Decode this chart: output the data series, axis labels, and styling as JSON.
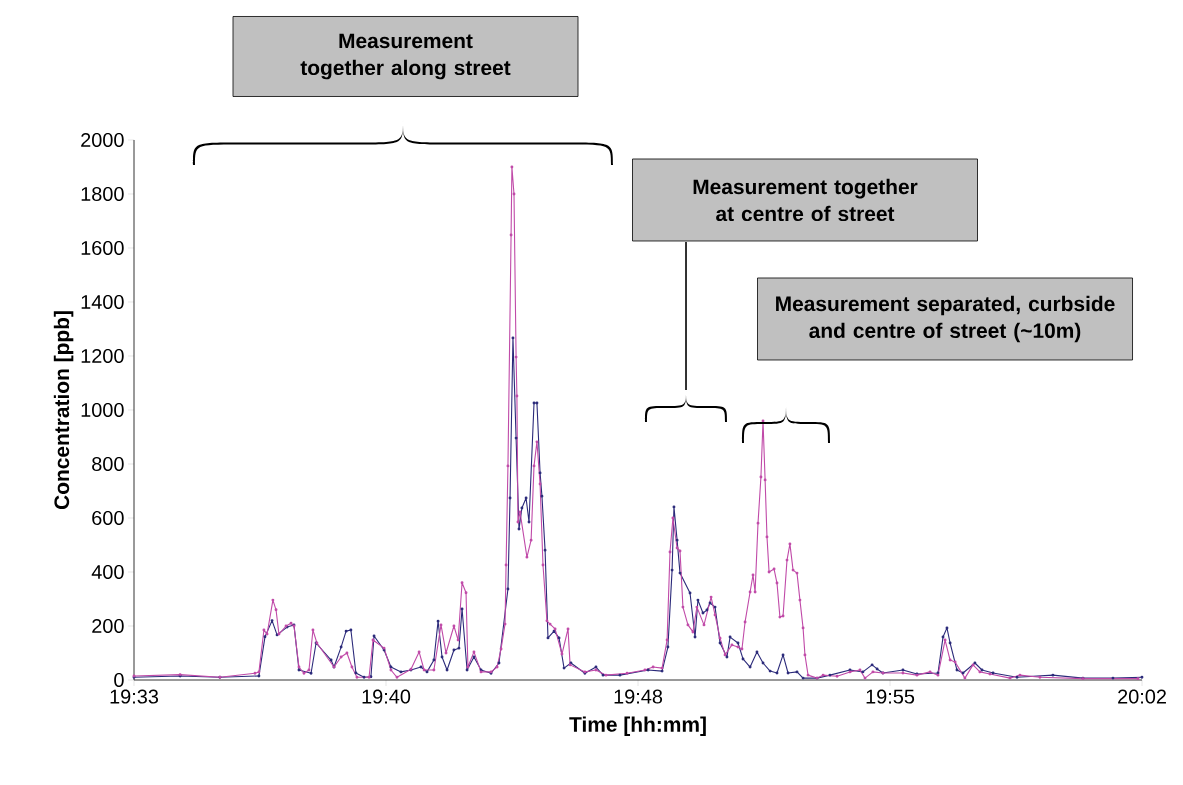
{
  "chart_data": {
    "type": "line",
    "xlabel": "Time [hh:mm]",
    "ylabel": "Concentration [ppb]",
    "xlim": [
      19.55,
      20.033333
    ],
    "ylim": [
      0,
      2000
    ],
    "xticks": [
      {
        "value": 19.55,
        "label": "19:33"
      },
      {
        "value": 19.670833,
        "label": "19:40"
      },
      {
        "value": 19.791667,
        "label": "19:48"
      },
      {
        "value": 19.9125,
        "label": "19:55"
      },
      {
        "value": 20.033333,
        "label": "20:02"
      }
    ],
    "yticks": [
      0,
      200,
      400,
      600,
      800,
      1000,
      1200,
      1400,
      1600,
      1800,
      2000
    ],
    "marker": "circle",
    "annotations": [
      "Measurement together along street",
      "Measurement together at centre of street",
      "Measurement separated, curbside and centre of street (~10m)"
    ],
    "series": [
      {
        "color": "#2b2a7a",
        "x": [
          19.55,
          19.5721,
          19.5912,
          19.6099,
          19.6128,
          19.6162,
          19.6186,
          19.6234,
          19.6267,
          19.6291,
          19.6349,
          19.6373,
          19.6445,
          19.6459,
          19.6493,
          19.6517,
          19.654,
          19.6564,
          19.6603,
          19.6636,
          19.6651,
          19.6699,
          19.6732,
          19.678,
          19.6828,
          19.6876,
          19.6905,
          19.6938,
          19.6958,
          19.6977,
          19.7001,
          19.7034,
          19.7058,
          19.7073,
          19.7097,
          19.713,
          19.7164,
          19.7212,
          19.725,
          19.7293,
          19.7303,
          19.7317,
          19.7332,
          19.7346,
          19.736,
          19.738,
          19.7394,
          19.7418,
          19.7432,
          19.7447,
          19.7456,
          19.7471,
          19.7485,
          19.7514,
          19.7538,
          19.7562,
          19.7595,
          19.7662,
          19.7715,
          19.7749,
          19.783,
          19.7965,
          19.8032,
          19.806,
          19.808,
          19.8089,
          19.8104,
          19.8118,
          19.8166,
          19.819,
          19.8204,
          19.8228,
          19.8247,
          19.8262,
          19.8286,
          19.831,
          19.8343,
          19.8358,
          19.8396,
          19.842,
          19.8454,
          19.8487,
          19.8516,
          19.855,
          19.8583,
          19.8612,
          19.8636,
          19.8679,
          19.8708,
          19.8775,
          19.8837,
          19.8933,
          19.8995,
          19.9039,
          19.9063,
          19.9091,
          19.9187,
          19.9254,
          19.9355,
          19.9379,
          19.9398,
          19.9413,
          19.9446,
          19.9475,
          19.9532,
          19.9566,
          19.9619,
          19.9734,
          19.9906,
          20.005,
          20.0194,
          20.0333
        ],
        "values": [
          10,
          15,
          10,
          15,
          160,
          220,
          167,
          196,
          204,
          37,
          25,
          137,
          74,
          48,
          122,
          181,
          185,
          26,
          10,
          12,
          163,
          111,
          48,
          30,
          37,
          48,
          30,
          74,
          218,
          85,
          37,
          111,
          118,
          263,
          37,
          85,
          37,
          25,
          63,
          337,
          674,
          1267,
          896,
          559,
          637,
          674,
          585,
          1026,
          1026,
          767,
          681,
          481,
          156,
          181,
          156,
          44,
          63,
          25,
          48,
          18,
          18,
          37,
          33,
          122,
          407,
          641,
          518,
          396,
          322,
          159,
          296,
          248,
          259,
          285,
          270,
          137,
          85,
          159,
          137,
          78,
          48,
          104,
          63,
          33,
          26,
          93,
          26,
          30,
          7,
          7,
          18,
          37,
          30,
          56,
          41,
          26,
          37,
          22,
          26,
          159,
          193,
          137,
          37,
          26,
          63,
          37,
          26,
          10,
          18,
          7,
          7,
          10
        ]
      },
      {
        "color": "#c04aa8",
        "x": [
          19.55,
          19.5721,
          19.5912,
          19.608,
          19.6099,
          19.6123,
          19.6138,
          19.6166,
          19.6181,
          19.6195,
          19.6229,
          19.6253,
          19.6267,
          19.6291,
          19.6315,
          19.6339,
          19.6358,
          19.6377,
          19.6459,
          19.6493,
          19.6521,
          19.6545,
          19.6569,
          19.6627,
          19.6646,
          19.6699,
          19.6732,
          19.6761,
          19.6828,
          19.6867,
          19.6891,
          19.6938,
          19.6972,
          19.6996,
          19.7034,
          19.7054,
          19.7073,
          19.7092,
          19.7101,
          19.713,
          19.7164,
          19.7212,
          19.7241,
          19.726,
          19.7279,
          19.7284,
          19.7293,
          19.7308,
          19.7312,
          19.7322,
          19.7332,
          19.7336,
          19.7341,
          19.7351,
          19.7384,
          19.7404,
          19.7418,
          19.7432,
          19.7447,
          19.7461,
          19.748,
          19.7495,
          19.7519,
          19.7552,
          19.7581,
          19.7591,
          19.7662,
          19.7715,
          19.7763,
          19.7864,
          19.795,
          19.7989,
          19.8032,
          19.8056,
          19.807,
          19.8084,
          19.8104,
          19.8118,
          19.8132,
          19.8156,
          19.818,
          19.8199,
          19.8233,
          19.8267,
          19.8286,
          19.831,
          19.8334,
          19.8367,
          19.8396,
          19.8415,
          19.843,
          19.8454,
          19.8468,
          19.8478,
          19.8492,
          19.8506,
          19.8516,
          19.8526,
          19.8535,
          19.8545,
          19.8569,
          19.8583,
          19.8597,
          19.8612,
          19.8631,
          19.8645,
          19.866,
          19.8679,
          19.8693,
          19.8708,
          19.8717,
          19.8732,
          19.8775,
          19.8804,
          19.8871,
          19.8933,
          19.8981,
          19.9005,
          19.9043,
          19.9091,
          19.9187,
          19.9254,
          19.9317,
          19.9355,
          19.9389,
          19.9413,
          19.9437,
          19.9484,
          19.9523,
          19.9556,
          19.9604,
          19.97,
          19.9748,
          19.9844,
          20.005,
          20.0314
        ],
        "values": [
          15,
          20,
          10,
          25,
          30,
          185,
          170,
          296,
          260,
          170,
          200,
          210,
          200,
          48,
          25,
          37,
          185,
          137,
          48,
          85,
          100,
          48,
          10,
          10,
          148,
          118,
          37,
          10,
          40,
          104,
          37,
          37,
          204,
          100,
          200,
          148,
          360,
          323,
          48,
          104,
          30,
          30,
          48,
          115,
          207,
          426,
          793,
          1648,
          1900,
          1800,
          1196,
          1052,
          585,
          622,
          455,
          518,
          793,
          882,
          726,
          426,
          219,
          207,
          189,
          96,
          189,
          56,
          30,
          37,
          18,
          25,
          37,
          48,
          44,
          148,
          474,
          600,
          489,
          478,
          270,
          204,
          178,
          270,
          204,
          307,
          241,
          155,
          93,
          130,
          122,
          115,
          215,
          326,
          389,
          326,
          581,
          752,
          959,
          741,
          530,
          400,
          411,
          359,
          233,
          237,
          444,
          504,
          407,
          396,
          296,
          193,
          93,
          18,
          7,
          18,
          14,
          30,
          37,
          7,
          30,
          26,
          26,
          18,
          30,
          18,
          148,
          74,
          67,
          7,
          56,
          30,
          22,
          7,
          18,
          10,
          5,
          5
        ]
      }
    ]
  }
}
